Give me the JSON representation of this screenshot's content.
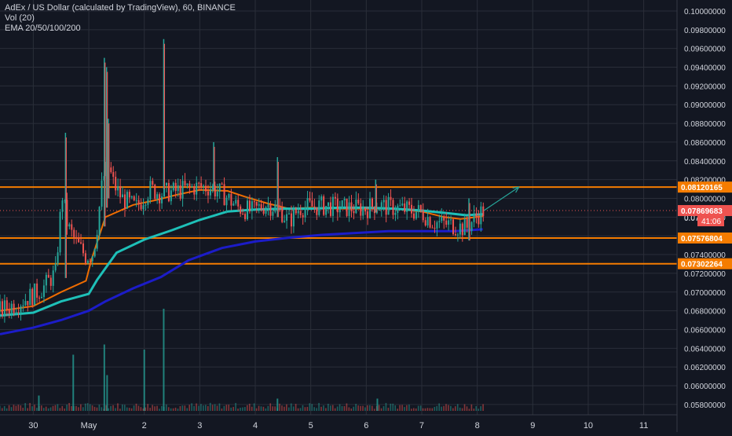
{
  "legend": {
    "title": "AdEx / US Dollar (calculated by TradingView), 60, BINANCE",
    "vol": "Vol (20)",
    "ema": "EMA 20/50/100/200"
  },
  "colors": {
    "background": "#131722",
    "grid": "#2a2e39",
    "axis_text": "#d1d4dc",
    "bull": "#26a69a",
    "bear": "#ef5350",
    "hline": "#f57c00",
    "price_label_bg": "#ef5350",
    "ema20": "#ef6c00",
    "ema50": "#1ec0b8",
    "ema200": "#1c1cc8",
    "arrow": "#26a69a"
  },
  "chart_data": {
    "type": "candlestick",
    "symbol": "AdEx / US Dollar (calculated by TradingView)",
    "interval": "60",
    "exchange": "BINANCE",
    "ylim": [
      0.0569,
      0.1005
    ],
    "xlim": [
      -0.6,
      11.6
    ],
    "y_ticks": [
      "0.05800000",
      "0.06000000",
      "0.06200000",
      "0.06400000",
      "0.06600000",
      "0.06800000",
      "0.07000000",
      "0.07200000",
      "0.07400000",
      "0.07600000",
      "0.07800000",
      "0.08000000",
      "0.08200000",
      "0.08400000",
      "0.08600000",
      "0.08800000",
      "0.09000000",
      "0.09200000",
      "0.09400000",
      "0.09600000",
      "0.09800000",
      "0.10000000"
    ],
    "x_ticks": [
      {
        "label": "30",
        "x": 0
      },
      {
        "label": "May",
        "x": 1
      },
      {
        "label": "2",
        "x": 2
      },
      {
        "label": "3",
        "x": 3
      },
      {
        "label": "4",
        "x": 4
      },
      {
        "label": "5",
        "x": 5
      },
      {
        "label": "6",
        "x": 6
      },
      {
        "label": "7",
        "x": 7
      },
      {
        "label": "8",
        "x": 8
      },
      {
        "label": "9",
        "x": 9
      },
      {
        "label": "10",
        "x": 10
      },
      {
        "label": "11",
        "x": 11
      }
    ],
    "horizontal_levels": [
      {
        "price": 0.08120165,
        "label": "0.08120165"
      },
      {
        "price": 0.07576804,
        "label": "0.07576804"
      },
      {
        "price": 0.07302264,
        "label": "0.07302264"
      }
    ],
    "current_price": {
      "price": 0.07869683,
      "label": "0.07869683",
      "countdown": "41:06"
    },
    "partial_hidden_label": "0.078",
    "trend_arrow": {
      "from": [
        8.12,
        0.0787
      ],
      "to": [
        8.75,
        0.0812
      ]
    },
    "ema_lines": [
      {
        "name": "EMA 20",
        "color": "#ef6c00",
        "points": [
          [
            -0.6,
            0.068
          ],
          [
            0.0,
            0.0685
          ],
          [
            0.5,
            0.07
          ],
          [
            0.95,
            0.0712
          ],
          [
            1.05,
            0.0735
          ],
          [
            1.3,
            0.078
          ],
          [
            1.8,
            0.0793
          ],
          [
            2.2,
            0.0798
          ],
          [
            2.6,
            0.0804
          ],
          [
            3.0,
            0.0809
          ],
          [
            3.5,
            0.0808
          ],
          [
            3.8,
            0.0802
          ],
          [
            4.2,
            0.0795
          ],
          [
            4.6,
            0.0789
          ],
          [
            5.0,
            0.079
          ],
          [
            5.5,
            0.0789
          ],
          [
            6.0,
            0.0789
          ],
          [
            6.5,
            0.0789
          ],
          [
            7.0,
            0.0786
          ],
          [
            7.4,
            0.078
          ],
          [
            7.7,
            0.0778
          ],
          [
            8.1,
            0.0781
          ]
        ]
      },
      {
        "name": "EMA 50",
        "color": "#1ec0b8",
        "points": [
          [
            -0.6,
            0.0675
          ],
          [
            0.0,
            0.0678
          ],
          [
            0.5,
            0.069
          ],
          [
            1.0,
            0.0698
          ],
          [
            1.15,
            0.0713
          ],
          [
            1.5,
            0.0742
          ],
          [
            2.0,
            0.0756
          ],
          [
            2.5,
            0.0766
          ],
          [
            3.0,
            0.0777
          ],
          [
            3.5,
            0.0786
          ],
          [
            4.0,
            0.0788
          ],
          [
            4.5,
            0.0789
          ],
          [
            5.0,
            0.0789
          ],
          [
            5.5,
            0.079
          ],
          [
            6.0,
            0.079
          ],
          [
            6.5,
            0.0789
          ],
          [
            7.0,
            0.0787
          ],
          [
            7.5,
            0.0784
          ],
          [
            7.8,
            0.0782
          ],
          [
            8.1,
            0.0783
          ]
        ]
      },
      {
        "name": "EMA 200",
        "color": "#1c1cc8",
        "points": [
          [
            -0.6,
            0.0655
          ],
          [
            0.0,
            0.0662
          ],
          [
            0.5,
            0.067
          ],
          [
            1.0,
            0.068
          ],
          [
            1.3,
            0.069
          ],
          [
            1.8,
            0.0704
          ],
          [
            2.3,
            0.0716
          ],
          [
            2.8,
            0.0734
          ],
          [
            3.4,
            0.0747
          ],
          [
            4.0,
            0.0754
          ],
          [
            4.6,
            0.0758
          ],
          [
            5.2,
            0.0761
          ],
          [
            5.8,
            0.0763
          ],
          [
            6.4,
            0.0765
          ],
          [
            7.0,
            0.0765
          ],
          [
            7.6,
            0.0765
          ],
          [
            8.1,
            0.0767
          ]
        ]
      }
    ],
    "candle_anchors": [
      [
        -0.6,
        0.068
      ],
      [
        -0.3,
        0.0688
      ],
      [
        0.0,
        0.0697
      ],
      [
        0.2,
        0.0706
      ],
      [
        0.32,
        0.0715
      ],
      [
        0.4,
        0.072
      ],
      [
        0.52,
        0.0805
      ],
      [
        0.62,
        0.077
      ],
      [
        0.78,
        0.0752
      ],
      [
        0.95,
        0.0738
      ],
      [
        1.08,
        0.0742
      ],
      [
        1.15,
        0.077
      ],
      [
        1.25,
        0.082
      ],
      [
        1.35,
        0.0835
      ],
      [
        1.45,
        0.0815
      ],
      [
        1.6,
        0.08
      ],
      [
        1.85,
        0.079
      ],
      [
        2.1,
        0.081
      ],
      [
        2.3,
        0.0805
      ],
      [
        2.6,
        0.0808
      ],
      [
        2.9,
        0.0812
      ],
      [
        3.2,
        0.0812
      ],
      [
        3.45,
        0.0803
      ],
      [
        3.7,
        0.079
      ],
      [
        3.95,
        0.0786
      ],
      [
        4.2,
        0.0794
      ],
      [
        4.45,
        0.0788
      ],
      [
        4.6,
        0.0775
      ],
      [
        4.8,
        0.079
      ],
      [
        5.2,
        0.0792
      ],
      [
        5.6,
        0.079
      ],
      [
        6.0,
        0.0789
      ],
      [
        6.15,
        0.0793
      ],
      [
        6.5,
        0.079
      ],
      [
        7.0,
        0.0785
      ],
      [
        7.2,
        0.0775
      ],
      [
        7.5,
        0.0772
      ],
      [
        7.8,
        0.0768
      ],
      [
        8.0,
        0.0782
      ],
      [
        8.12,
        0.0787
      ]
    ],
    "spikes": [
      {
        "x": 0.58,
        "high": 0.087,
        "low": 0.0715
      },
      {
        "x": 1.28,
        "high": 0.095,
        "low": 0.077
      },
      {
        "x": 1.32,
        "high": 0.094,
        "low": 0.079
      },
      {
        "x": 1.35,
        "high": 0.0885,
        "low": 0.08
      },
      {
        "x": 2.35,
        "high": 0.097,
        "low": 0.081
      },
      {
        "x": 3.25,
        "high": 0.086,
        "low": 0.0808
      },
      {
        "x": 4.4,
        "high": 0.0844,
        "low": 0.078
      },
      {
        "x": 6.17,
        "high": 0.082,
        "low": 0.0785
      },
      {
        "x": 7.85,
        "high": 0.08,
        "low": 0.0755
      }
    ],
    "volume_spikes": [
      {
        "x": 0.72,
        "v": 0.55
      },
      {
        "x": 1.28,
        "v": 0.65
      },
      {
        "x": 1.33,
        "v": 0.35
      },
      {
        "x": 2.0,
        "v": 0.6
      },
      {
        "x": 2.35,
        "v": 1.0
      },
      {
        "x": 0.1,
        "v": 0.15
      },
      {
        "x": 4.4,
        "v": 0.12
      },
      {
        "x": 6.2,
        "v": 0.12
      }
    ]
  }
}
